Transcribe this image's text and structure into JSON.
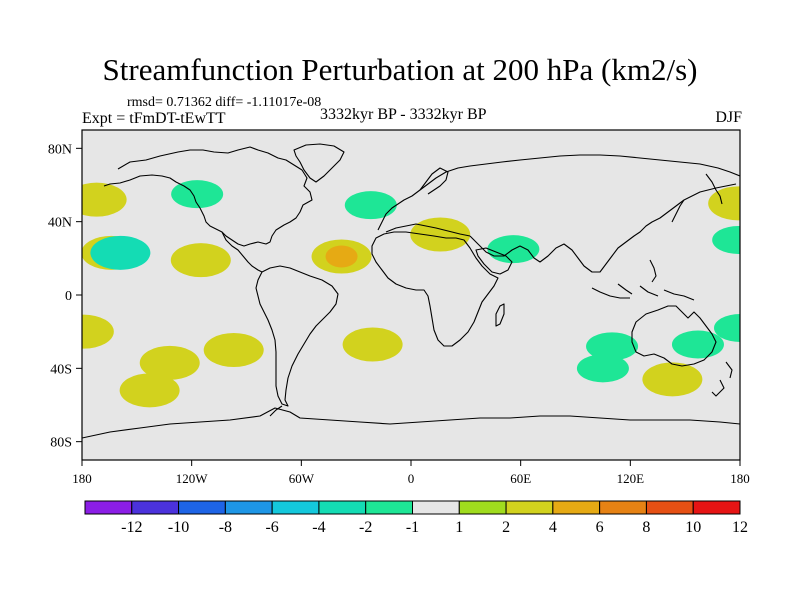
{
  "title": "Streamfunction Perturbation at 200 hPa (km2/s)",
  "stats": "rmsd= 0.71362 diff= -1.11017e-08",
  "experiment": "Expt = tFmDT-tEwTT",
  "period": "3332kyr BP - 3332kyr BP",
  "season": "DJF",
  "map": {
    "ocean_color": "#e6e6e6",
    "coast_color": "#000000",
    "lat_labels": [
      "80N",
      "40N",
      "0",
      "40S",
      "80S"
    ],
    "lat_values": [
      80,
      40,
      0,
      -40,
      -80
    ],
    "lon_labels": [
      "180",
      "120W",
      "60W",
      "0",
      "60E",
      "120E",
      "180"
    ],
    "lon_values": [
      -180,
      -120,
      -60,
      0,
      60,
      120,
      180
    ]
  },
  "anomalies": [
    {
      "lon": -172,
      "lat": 52,
      "value": 2
    },
    {
      "lon": -164,
      "lat": 23,
      "value": 2
    },
    {
      "lon": -159,
      "lat": 23,
      "value": -2
    },
    {
      "lon": -117,
      "lat": 55,
      "value": -1
    },
    {
      "lon": -115,
      "lat": 19,
      "value": 2
    },
    {
      "lon": -38,
      "lat": 21,
      "value": 2
    },
    {
      "lon": -38,
      "lat": 21,
      "value": 4
    },
    {
      "lon": -22,
      "lat": 49,
      "value": -1
    },
    {
      "lon": 110,
      "lat": -28,
      "value": -1
    },
    {
      "lon": 56,
      "lat": 25,
      "value": -1
    },
    {
      "lon": 105,
      "lat": -40,
      "value": -1
    },
    {
      "lon": 143,
      "lat": -46,
      "value": 2
    },
    {
      "lon": 157,
      "lat": -27,
      "value": -1
    },
    {
      "lon": -132,
      "lat": -37,
      "value": 2
    },
    {
      "lon": -143,
      "lat": -52,
      "value": 2
    },
    {
      "lon": -21,
      "lat": -27,
      "value": 2
    },
    {
      "lon": -97,
      "lat": -30,
      "value": 2
    },
    {
      "lon": 179,
      "lat": 50,
      "value": 2
    },
    {
      "lon": 179,
      "lat": 30,
      "value": -1
    },
    {
      "lon": -179,
      "lat": -20,
      "value": 2
    },
    {
      "lon": 180,
      "lat": -18,
      "value": -1
    },
    {
      "lon": 16,
      "lat": 33,
      "value": 2
    }
  ],
  "colorbar": {
    "colors": [
      "#8b1ee6",
      "#4b32dc",
      "#1e64e6",
      "#1e96e6",
      "#14c8dc",
      "#14dcb4",
      "#1ee696",
      "#e6e6e6",
      "#a0dc1e",
      "#d2d21e",
      "#e6aa14",
      "#e68214",
      "#e65014",
      "#e61414"
    ],
    "labels": [
      "-12",
      "-10",
      "-8",
      "-6",
      "-4",
      "-2",
      "-1",
      "1",
      "2",
      "4",
      "6",
      "8",
      "10",
      "12"
    ]
  }
}
